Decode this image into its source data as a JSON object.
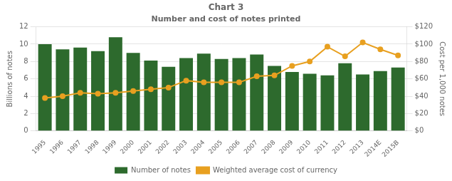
{
  "chart_data": {
    "type": "bar",
    "title": "Chart 3",
    "subtitle": "Number and cost of notes printed",
    "categories": [
      "1995",
      "1996",
      "1997",
      "1998",
      "1999",
      "2000",
      "2001",
      "2002",
      "2003",
      "2004",
      "2005",
      "2006",
      "2007",
      "2008",
      "2009",
      "2010",
      "2011",
      "2012",
      "2013",
      "2014E",
      "2015B"
    ],
    "series": [
      {
        "name": "Number of notes",
        "type": "bar",
        "color": "#2d6a2d",
        "values": [
          10.0,
          9.4,
          9.6,
          9.2,
          10.8,
          9.0,
          8.1,
          7.4,
          8.4,
          8.9,
          8.3,
          8.4,
          8.8,
          7.5,
          6.8,
          6.6,
          6.4,
          7.8,
          6.5,
          6.9,
          7.3
        ]
      },
      {
        "name": "Weighted average cost of currency",
        "type": "line",
        "color": "#e8a020",
        "marker": "circle",
        "axis": "y2",
        "values": [
          38,
          40,
          44,
          43,
          44,
          46,
          48,
          50,
          58,
          56,
          56,
          56,
          63,
          64,
          75,
          80,
          97,
          86,
          102,
          94,
          87
        ]
      }
    ],
    "ylabel": "Billions of notes",
    "y2label": "Cost per 1,000 notes",
    "ylim": [
      0,
      12
    ],
    "yticks": [
      0,
      2,
      4,
      6,
      8,
      10,
      12
    ],
    "y2lim": [
      0,
      120
    ],
    "y2ticks": [
      {
        "value": 0,
        "label": "$0"
      },
      {
        "value": 20,
        "label": "$20"
      },
      {
        "value": 40,
        "label": "$40"
      },
      {
        "value": 60,
        "label": "$60"
      },
      {
        "value": 80,
        "label": "$80"
      },
      {
        "value": 100,
        "label": "$100"
      },
      {
        "value": 120,
        "label": "$120"
      }
    ],
    "grid": true,
    "legend": "bottom"
  }
}
